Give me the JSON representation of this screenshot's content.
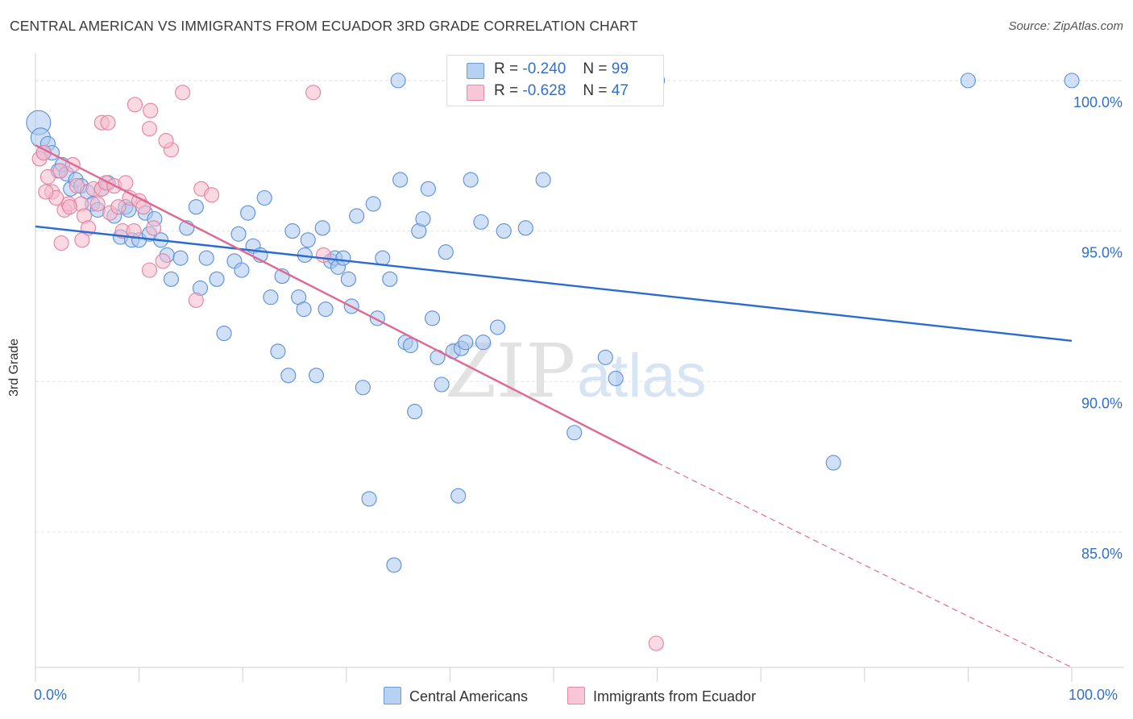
{
  "header": {
    "title": "CENTRAL AMERICAN VS IMMIGRANTS FROM ECUADOR 3RD GRADE CORRELATION CHART",
    "source": "Source: ZipAtlas.com"
  },
  "watermark": {
    "part1": "ZIP",
    "part2": "atlas"
  },
  "legend": {
    "rows": [
      {
        "r_label": "R =",
        "r_value": "-0.240",
        "n_label": "N =",
        "n_value": "99"
      },
      {
        "r_label": "R =",
        "r_value": "-0.628",
        "n_label": "N =",
        "n_value": "47"
      }
    ]
  },
  "colors": {
    "blue_fill": "#a9c8f0",
    "blue_stroke": "#5a8fd8",
    "blue_line": "#2a6bd0",
    "pink_fill": "#f6b9cc",
    "pink_stroke": "#e6809f",
    "pink_line": "#e06890",
    "grid": "#e4e4e4",
    "axis_text": "#2f6fd0"
  },
  "chart_data": {
    "type": "scatter",
    "title": "CENTRAL AMERICAN VS IMMIGRANTS FROM ECUADOR 3RD GRADE CORRELATION CHART",
    "xlabel": "",
    "ylabel": "3rd Grade",
    "xlim": [
      0,
      100
    ],
    "ylim": [
      80.5,
      100.8
    ],
    "x_tick_labels": [
      "0.0%",
      "100.0%"
    ],
    "y_ticks": [
      85,
      90,
      95,
      100
    ],
    "y_tick_labels": [
      "85.0%",
      "90.0%",
      "95.0%",
      "100.0%"
    ],
    "grid": true,
    "legend_position": "top-center",
    "series": [
      {
        "name": "Central Americans",
        "color": "#a9c8f0",
        "trend": {
          "x0": 0,
          "y0": 95.15,
          "x1": 100,
          "y1": 91.35
        },
        "points": [
          [
            0.3,
            98.6
          ],
          [
            0.5,
            98.1
          ],
          [
            1.2,
            97.9
          ],
          [
            1.6,
            97.6
          ],
          [
            2.2,
            97.0
          ],
          [
            2.6,
            97.2
          ],
          [
            3.0,
            96.9
          ],
          [
            3.4,
            96.4
          ],
          [
            3.9,
            96.7
          ],
          [
            4.4,
            96.5
          ],
          [
            5.0,
            96.3
          ],
          [
            5.5,
            95.9
          ],
          [
            6.0,
            95.7
          ],
          [
            6.4,
            96.4
          ],
          [
            7.0,
            96.6
          ],
          [
            7.6,
            95.5
          ],
          [
            8.2,
            94.8
          ],
          [
            8.7,
            95.8
          ],
          [
            9.3,
            94.7
          ],
          [
            10.0,
            94.7
          ],
          [
            10.6,
            95.6
          ],
          [
            11.0,
            94.9
          ],
          [
            11.5,
            95.4
          ],
          [
            12.1,
            94.7
          ],
          [
            12.7,
            94.2
          ],
          [
            13.1,
            93.4
          ],
          [
            14.0,
            94.1
          ],
          [
            14.6,
            95.1
          ],
          [
            15.5,
            95.8
          ],
          [
            15.9,
            93.1
          ],
          [
            16.5,
            94.1
          ],
          [
            17.5,
            93.4
          ],
          [
            18.2,
            91.6
          ],
          [
            19.2,
            94.0
          ],
          [
            19.6,
            94.9
          ],
          [
            19.9,
            93.7
          ],
          [
            20.5,
            95.6
          ],
          [
            21.0,
            94.5
          ],
          [
            21.7,
            94.2
          ],
          [
            22.1,
            96.1
          ],
          [
            22.7,
            92.8
          ],
          [
            23.4,
            91.0
          ],
          [
            23.8,
            93.5
          ],
          [
            24.4,
            90.2
          ],
          [
            24.8,
            95.0
          ],
          [
            25.4,
            92.8
          ],
          [
            25.9,
            92.4
          ],
          [
            26.0,
            94.2
          ],
          [
            26.3,
            94.7
          ],
          [
            27.1,
            90.2
          ],
          [
            27.7,
            95.1
          ],
          [
            28.0,
            92.4
          ],
          [
            28.5,
            94.0
          ],
          [
            28.9,
            94.1
          ],
          [
            29.2,
            93.8
          ],
          [
            29.7,
            94.1
          ],
          [
            30.2,
            93.4
          ],
          [
            30.5,
            92.5
          ],
          [
            31.0,
            95.5
          ],
          [
            31.6,
            89.8
          ],
          [
            32.2,
            86.1
          ],
          [
            32.6,
            95.9
          ],
          [
            33.0,
            92.1
          ],
          [
            33.5,
            94.1
          ],
          [
            34.2,
            93.4
          ],
          [
            34.6,
            83.9
          ],
          [
            35.2,
            96.7
          ],
          [
            35.7,
            91.3
          ],
          [
            36.2,
            91.2
          ],
          [
            36.6,
            89.0
          ],
          [
            37.0,
            95.0
          ],
          [
            37.4,
            95.4
          ],
          [
            37.9,
            96.4
          ],
          [
            38.3,
            92.1
          ],
          [
            38.8,
            90.8
          ],
          [
            39.2,
            89.9
          ],
          [
            39.6,
            94.3
          ],
          [
            40.3,
            91.0
          ],
          [
            40.8,
            86.2
          ],
          [
            41.1,
            91.1
          ],
          [
            41.5,
            91.3
          ],
          [
            42.0,
            96.7
          ],
          [
            43.2,
            91.3
          ],
          [
            44.6,
            91.8
          ],
          [
            43.0,
            95.3
          ],
          [
            47.3,
            95.1
          ],
          [
            45.2,
            95.0
          ],
          [
            49.0,
            96.7
          ],
          [
            52.0,
            88.3
          ],
          [
            55.0,
            90.8
          ],
          [
            56.0,
            90.1
          ],
          [
            77.0,
            87.3
          ],
          [
            35.0,
            100.0
          ],
          [
            60.0,
            100.0
          ],
          [
            90.0,
            100.0
          ],
          [
            100.0,
            100.0
          ],
          [
            0.8,
            97.6
          ],
          [
            9.0,
            95.7
          ]
        ]
      },
      {
        "name": "Immigrants from Ecuador",
        "color": "#f6b9cc",
        "trend": {
          "x0": 0,
          "y0": 97.85,
          "x1": 60,
          "y1": 87.3,
          "dash_to_x": 100,
          "dash_to_y": 80.5
        },
        "points": [
          [
            0.4,
            97.4
          ],
          [
            0.8,
            97.6
          ],
          [
            1.2,
            96.8
          ],
          [
            1.6,
            96.3
          ],
          [
            2.0,
            96.1
          ],
          [
            2.4,
            97.0
          ],
          [
            2.8,
            95.7
          ],
          [
            3.2,
            95.9
          ],
          [
            3.6,
            97.2
          ],
          [
            4.0,
            96.5
          ],
          [
            4.4,
            95.9
          ],
          [
            4.7,
            95.5
          ],
          [
            5.1,
            95.1
          ],
          [
            5.6,
            96.4
          ],
          [
            6.0,
            95.9
          ],
          [
            6.4,
            96.4
          ],
          [
            6.8,
            96.6
          ],
          [
            7.2,
            95.6
          ],
          [
            7.6,
            96.5
          ],
          [
            8.0,
            95.8
          ],
          [
            8.4,
            95.0
          ],
          [
            8.7,
            96.6
          ],
          [
            9.1,
            96.1
          ],
          [
            9.5,
            95.0
          ],
          [
            10.0,
            96.0
          ],
          [
            10.4,
            95.8
          ],
          [
            11.0,
            93.7
          ],
          [
            11.4,
            95.1
          ],
          [
            12.3,
            94.0
          ],
          [
            13.1,
            97.7
          ],
          [
            14.2,
            99.6
          ],
          [
            15.5,
            92.7
          ],
          [
            16.0,
            96.4
          ],
          [
            17.0,
            96.2
          ],
          [
            12.6,
            98.0
          ],
          [
            11.0,
            98.4
          ],
          [
            11.1,
            99.0
          ],
          [
            9.6,
            99.2
          ],
          [
            6.4,
            98.6
          ],
          [
            2.5,
            94.6
          ],
          [
            4.5,
            94.7
          ],
          [
            7.0,
            98.6
          ],
          [
            26.8,
            99.6
          ],
          [
            27.8,
            94.2
          ],
          [
            59.9,
            81.3
          ],
          [
            1.0,
            96.3
          ],
          [
            3.3,
            95.8
          ]
        ]
      }
    ]
  }
}
